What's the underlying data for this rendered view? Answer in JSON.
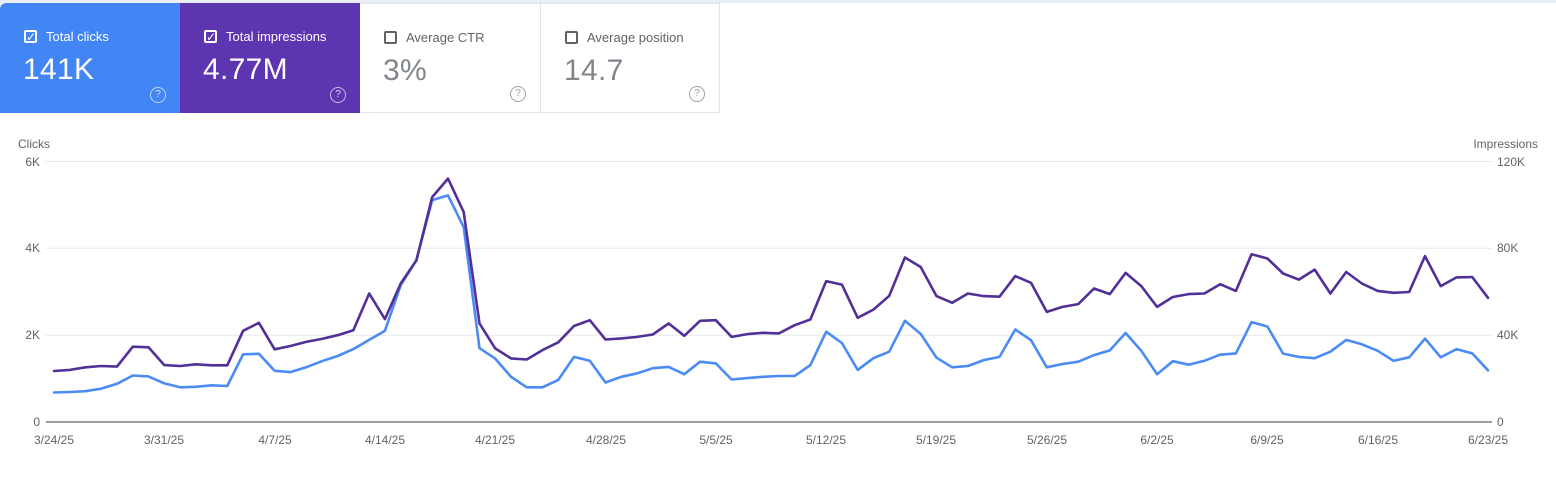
{
  "colors": {
    "page_top_strip": "#e9edf9",
    "clicks_card_bg": "#4285f4",
    "impressions_card_bg": "#5e35b1",
    "clicks_line": "#4b8bf5",
    "impressions_line": "#523098",
    "gridline": "#e6e8eb",
    "axis_line": "#9aa0a6",
    "axis_text": "#5f6368"
  },
  "metric_cards": [
    {
      "label": "Total clicks",
      "value": "141K",
      "selected": true,
      "bg": "#4285f4",
      "style": "colored"
    },
    {
      "label": "Total impressions",
      "value": "4.77M",
      "selected": true,
      "bg": "#5e35b1",
      "style": "colored"
    },
    {
      "label": "Average CTR",
      "value": "3%",
      "selected": false,
      "bg": "#ffffff",
      "style": "plain"
    },
    {
      "label": "Average position",
      "value": "14.7",
      "selected": false,
      "bg": "#ffffff",
      "style": "plain"
    }
  ],
  "chart": {
    "left_axis_title": "Clicks",
    "right_axis_title": "Impressions",
    "left_ticks": [
      "6K",
      "4K",
      "2K",
      "0"
    ],
    "right_ticks": [
      "120K",
      "80K",
      "40K",
      "0"
    ]
  },
  "chart_data": {
    "type": "line",
    "title": "",
    "xlabel": "",
    "left_ylabel": "Clicks",
    "right_ylabel": "Impressions",
    "left_ylim": [
      0,
      6000
    ],
    "right_ylim": [
      0,
      120000
    ],
    "left_tick_values": [
      6000,
      4000,
      2000,
      0
    ],
    "right_tick_values": [
      120000,
      80000,
      40000,
      0
    ],
    "grid": true,
    "legend_position": "none",
    "x_tick_indices": [
      0,
      7,
      14,
      21,
      28,
      35,
      42,
      49,
      56,
      63,
      70,
      77,
      84,
      91
    ],
    "x": [
      "3/24/25",
      "3/25/25",
      "3/26/25",
      "3/27/25",
      "3/28/25",
      "3/29/25",
      "3/30/25",
      "3/31/25",
      "4/1/25",
      "4/2/25",
      "4/3/25",
      "4/4/25",
      "4/5/25",
      "4/6/25",
      "4/7/25",
      "4/8/25",
      "4/9/25",
      "4/10/25",
      "4/11/25",
      "4/12/25",
      "4/13/25",
      "4/14/25",
      "4/15/25",
      "4/16/25",
      "4/17/25",
      "4/18/25",
      "4/19/25",
      "4/20/25",
      "4/21/25",
      "4/22/25",
      "4/23/25",
      "4/24/25",
      "4/25/25",
      "4/26/25",
      "4/27/25",
      "4/28/25",
      "4/29/25",
      "4/30/25",
      "5/1/25",
      "5/2/25",
      "5/3/25",
      "5/4/25",
      "5/5/25",
      "5/6/25",
      "5/7/25",
      "5/8/25",
      "5/9/25",
      "5/10/25",
      "5/11/25",
      "5/12/25",
      "5/13/25",
      "5/14/25",
      "5/15/25",
      "5/16/25",
      "5/17/25",
      "5/18/25",
      "5/19/25",
      "5/20/25",
      "5/21/25",
      "5/22/25",
      "5/23/25",
      "5/24/25",
      "5/25/25",
      "5/26/25",
      "5/27/25",
      "5/28/25",
      "5/29/25",
      "5/30/25",
      "5/31/25",
      "6/1/25",
      "6/2/25",
      "6/3/25",
      "6/4/25",
      "6/5/25",
      "6/6/25",
      "6/7/25",
      "6/8/25",
      "6/9/25",
      "6/10/25",
      "6/11/25",
      "6/12/25",
      "6/13/25",
      "6/14/25",
      "6/15/25",
      "6/16/25",
      "6/17/25",
      "6/18/25",
      "6/19/25",
      "6/20/25",
      "6/21/25",
      "6/22/25",
      "6/23/25"
    ],
    "series": [
      {
        "name": "Clicks",
        "axis": "left",
        "color": "#4b8bf5",
        "values": [
          680,
          690,
          710,
          770,
          880,
          1070,
          1050,
          890,
          800,
          810,
          845,
          830,
          1560,
          1570,
          1180,
          1150,
          1260,
          1400,
          1520,
          1680,
          1890,
          2100,
          3150,
          3730,
          5110,
          5220,
          4490,
          1700,
          1460,
          1040,
          800,
          800,
          970,
          1500,
          1410,
          910,
          1040,
          1120,
          1240,
          1270,
          1100,
          1390,
          1350,
          980,
          1010,
          1040,
          1060,
          1060,
          1310,
          2080,
          1820,
          1200,
          1470,
          1620,
          2330,
          2030,
          1480,
          1260,
          1290,
          1425,
          1500,
          2130,
          1885,
          1260,
          1335,
          1390,
          1540,
          1650,
          2050,
          1640,
          1100,
          1400,
          1320,
          1410,
          1550,
          1580,
          2300,
          2200,
          1575,
          1500,
          1470,
          1620,
          1890,
          1790,
          1640,
          1410,
          1490,
          1920,
          1490,
          1680,
          1580,
          1190
        ]
      },
      {
        "name": "Impressions",
        "axis": "right",
        "color": "#523098",
        "values": [
          23500,
          24000,
          25200,
          25800,
          25500,
          34700,
          34400,
          26200,
          25800,
          26600,
          26100,
          26100,
          42000,
          45700,
          33500,
          35000,
          36900,
          38300,
          40000,
          42300,
          59200,
          47400,
          63800,
          74500,
          103600,
          112100,
          96700,
          45400,
          33900,
          29300,
          28800,
          33100,
          36700,
          44200,
          46900,
          38000,
          38500,
          39200,
          40300,
          45400,
          39700,
          46600,
          46900,
          39200,
          40500,
          41100,
          40800,
          44600,
          47200,
          64900,
          63300,
          48000,
          51800,
          58100,
          75800,
          71400,
          58000,
          54900,
          59200,
          58000,
          57700,
          67200,
          64100,
          50700,
          53000,
          54300,
          61500,
          58900,
          68700,
          62600,
          53000,
          57600,
          58900,
          59200,
          63500,
          60400,
          77300,
          75300,
          68400,
          65600,
          70200,
          59200,
          69100,
          63800,
          60400,
          59500,
          59900,
          76400,
          62600,
          66600,
          66800,
          57200
        ]
      }
    ]
  }
}
